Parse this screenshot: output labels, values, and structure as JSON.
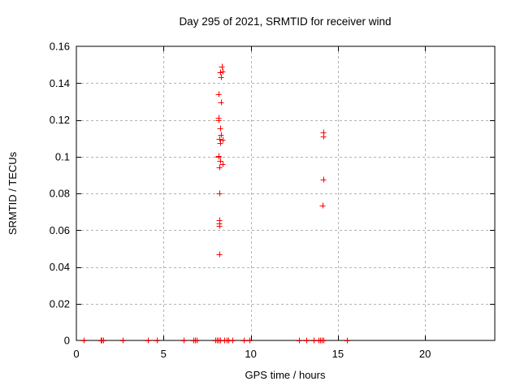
{
  "chart_data": {
    "type": "scatter",
    "title": "Day 295 of 2021, SRMTID for receiver wind",
    "xlabel": "GPS time / hours",
    "ylabel": "SRMTID / TECUs",
    "xlim": [
      0,
      24
    ],
    "ylim": [
      0,
      0.16
    ],
    "grid": true,
    "legend": "none",
    "marker": "plus",
    "marker_color": "#ff0000",
    "grid_color": "#b3b3b3",
    "frame_color": "#000000",
    "xticks": {
      "values": [
        0,
        5,
        10,
        15,
        20
      ],
      "labels": [
        "0",
        "5",
        "10",
        "15",
        "20"
      ]
    },
    "yticks": {
      "values": [
        0,
        0.02,
        0.04,
        0.06,
        0.08,
        0.1,
        0.12,
        0.14,
        0.16
      ],
      "labels": [
        "0",
        "0.02",
        "0.04",
        "0.06",
        "0.08",
        "0.1",
        "0.12",
        "0.14",
        "0.16"
      ]
    },
    "points": [
      [
        0.43,
        0
      ],
      [
        1.38,
        0
      ],
      [
        1.45,
        0
      ],
      [
        1.52,
        0
      ],
      [
        2.67,
        0
      ],
      [
        4.11,
        0
      ],
      [
        4.6,
        0
      ],
      [
        6.14,
        0
      ],
      [
        6.7,
        0
      ],
      [
        6.8,
        0
      ],
      [
        6.9,
        0
      ],
      [
        7.95,
        0
      ],
      [
        8.05,
        0
      ],
      [
        8.15,
        0
      ],
      [
        8.25,
        0
      ],
      [
        8.5,
        0
      ],
      [
        8.6,
        0
      ],
      [
        8.7,
        0
      ],
      [
        8.95,
        0
      ],
      [
        9.6,
        0
      ],
      [
        9.92,
        0
      ],
      [
        12.75,
        0
      ],
      [
        13.2,
        0
      ],
      [
        13.6,
        0
      ],
      [
        13.88,
        0
      ],
      [
        13.98,
        0
      ],
      [
        14.08,
        0
      ],
      [
        14.18,
        0
      ],
      [
        15.5,
        0
      ],
      [
        8.33,
        0.149
      ],
      [
        8.41,
        0.1465
      ],
      [
        8.27,
        0.1458
      ],
      [
        8.3,
        0.1433
      ],
      [
        8.16,
        0.1338
      ],
      [
        8.3,
        0.1293
      ],
      [
        8.15,
        0.1212
      ],
      [
        8.17,
        0.1198
      ],
      [
        8.24,
        0.1155
      ],
      [
        8.28,
        0.1118
      ],
      [
        8.18,
        0.1097
      ],
      [
        8.38,
        0.109
      ],
      [
        8.25,
        0.1072
      ],
      [
        8.15,
        0.1005
      ],
      [
        8.17,
        0.0997
      ],
      [
        8.26,
        0.0978
      ],
      [
        8.38,
        0.0961
      ],
      [
        8.22,
        0.0942
      ],
      [
        8.22,
        0.0799
      ],
      [
        8.22,
        0.0655
      ],
      [
        8.21,
        0.0638
      ],
      [
        8.22,
        0.0624
      ],
      [
        8.22,
        0.0468
      ],
      [
        14.17,
        0.1133
      ],
      [
        14.17,
        0.111
      ],
      [
        14.17,
        0.0876
      ],
      [
        14.13,
        0.0733
      ]
    ]
  }
}
